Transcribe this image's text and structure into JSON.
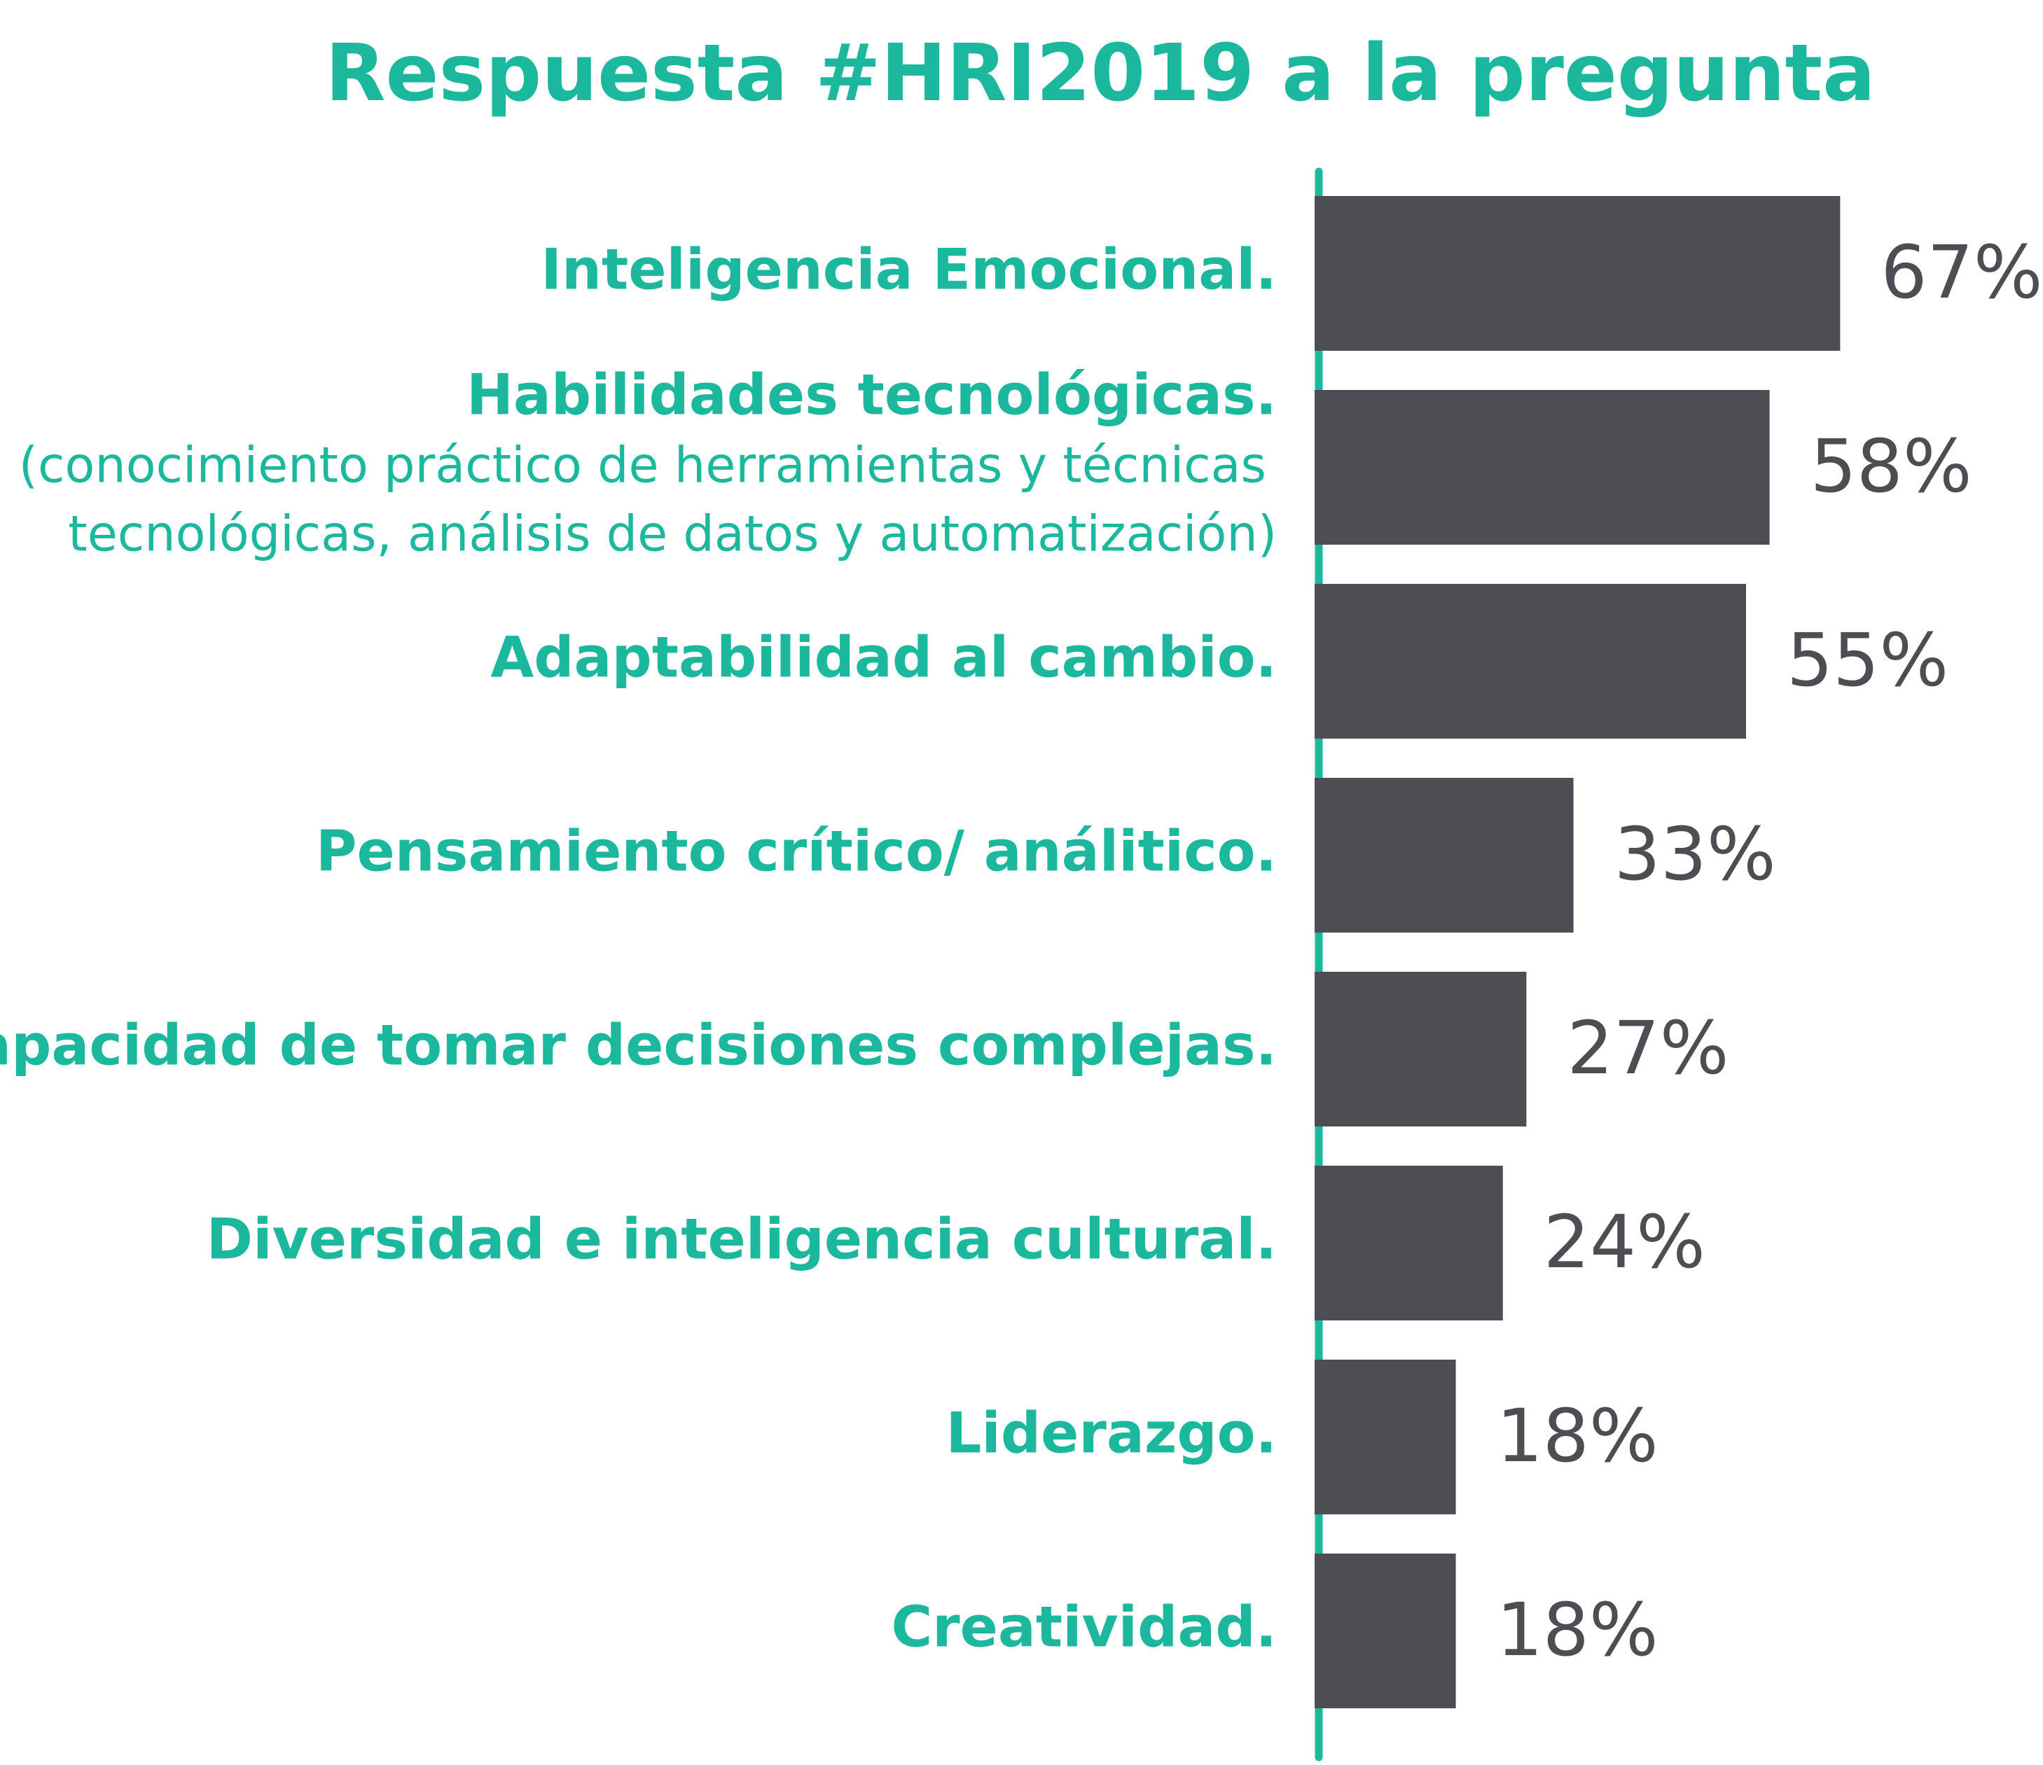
{
  "chart_data": {
    "type": "bar",
    "orientation": "horizontal",
    "title": "Respuesta #HRI2019 a la pregunta",
    "categories": [
      "Inteligencia Emocional.",
      "Habilidades tecnológicas.",
      "Adaptabilidad al cambio.",
      "Pensamiento crítico/ análitico.",
      "Capacidad de tomar decisiones complejas.",
      "Diversidad e inteligencia cultural.",
      "Liderazgo.",
      "Creatividad."
    ],
    "category_details": [
      null,
      [
        "(conocimiento práctico de herramientas y técnicas",
        "tecnológicas, análisis de datos y automatización)"
      ],
      null,
      null,
      null,
      null,
      null,
      null
    ],
    "values": [
      67,
      58,
      55,
      33,
      27,
      24,
      18,
      18
    ],
    "value_labels": [
      "67%",
      "58%",
      "55%",
      "33%",
      "27%",
      "24%",
      "18%",
      "18%"
    ],
    "color": "#4d4e53",
    "label_color": "#1bb89e",
    "axis_color": "#1bb89e"
  }
}
